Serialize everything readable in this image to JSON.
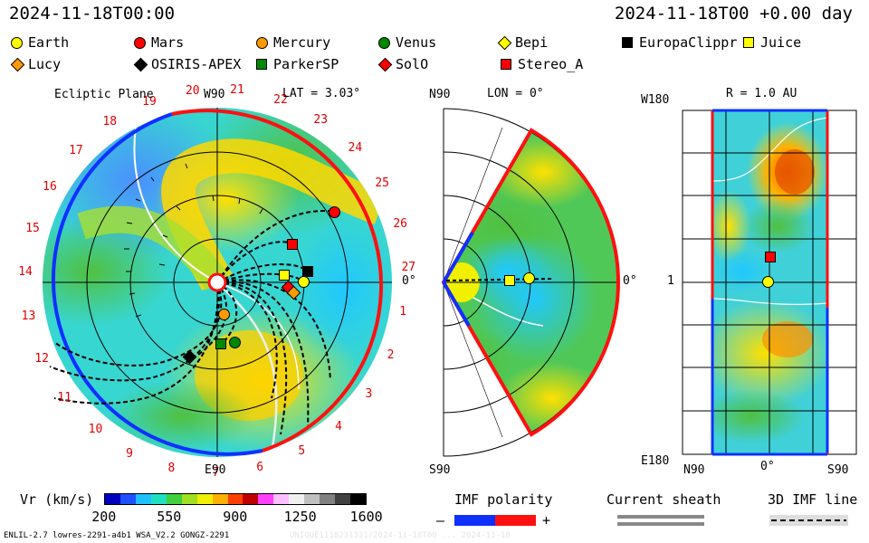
{
  "header": {
    "left_time": "2024-11-18T00:00",
    "right_time": "2024-11-18T00 +0.00 day"
  },
  "legend": {
    "items": [
      {
        "label": "Earth",
        "shape": "circle",
        "color": "#ffff00"
      },
      {
        "label": "Mars",
        "shape": "circle",
        "color": "#ff0000"
      },
      {
        "label": "Mercury",
        "shape": "circle",
        "color": "#ff9900"
      },
      {
        "label": "Venus",
        "shape": "circle",
        "color": "#008800"
      },
      {
        "label": "Bepi",
        "shape": "diamond",
        "color": "#ffff00"
      },
      {
        "label": "EuropaClippr",
        "shape": "square",
        "color": "#000000"
      },
      {
        "label": "Juice",
        "shape": "square",
        "color": "#ffff00"
      },
      {
        "label": "Lucy",
        "shape": "diamond",
        "color": "#ff9900"
      },
      {
        "label": "OSIRIS-APEX",
        "shape": "diamond",
        "color": "#000000"
      },
      {
        "label": "ParkerSP",
        "shape": "square",
        "color": "#008800"
      },
      {
        "label": "SolO",
        "shape": "diamond",
        "color": "#ff0000"
      },
      {
        "label": "Stereo_A",
        "shape": "square",
        "color": "#ff0000"
      }
    ]
  },
  "panels": {
    "ecliptic": {
      "title": "Ecliptic Plane",
      "lat": "LAT = 3.03°",
      "top_label": "W90",
      "bottom_label": "E90",
      "right_label": "0°"
    },
    "meridional": {
      "top_label": "N90",
      "lon": "LON = 0°",
      "bottom_label": "S90",
      "right_label": "0°"
    },
    "radial": {
      "title": "R = 1.0 AU",
      "top_left": "W180",
      "mid_left": "1",
      "bottom_left": "E180",
      "x_left": "N90",
      "x_mid": "0°",
      "x_right": "S90"
    }
  },
  "colorbar": {
    "label": "Vr (km/s)",
    "ticks": [
      "200",
      "550",
      "900",
      "1250",
      "1600"
    ],
    "colors": [
      "#0000c0",
      "#2050ff",
      "#20c0ff",
      "#20e0c0",
      "#40d040",
      "#a0e020",
      "#f0f000",
      "#ffb000",
      "#ff4000",
      "#c00000",
      "#ff40ff",
      "#ffc0ff",
      "#f0f0f0",
      "#c0c0c0",
      "#808080",
      "#404040",
      "#000000"
    ]
  },
  "imf": {
    "title": "IMF polarity",
    "minus": "–",
    "plus": "+"
  },
  "sheath": {
    "title": "Current sheath"
  },
  "imf3d": {
    "title": "3D IMF line"
  },
  "footer": {
    "left": "ENLIL-2.7 lowres-2291-a4b1 WSA_V2.2 GONGZ-2291",
    "right": "UNIQUE1118231331/2024-11-18T00 ... 2024-11-18"
  },
  "chart_data": {
    "type": "heatmap",
    "title": "Vr (km/s)",
    "carrington_labels": [
      "1",
      "2",
      "3",
      "4",
      "5",
      "6",
      "7",
      "8",
      "9",
      "10",
      "11",
      "12",
      "13",
      "14",
      "15",
      "16",
      "17",
      "18",
      "19",
      "20",
      "21",
      "22",
      "23",
      "24",
      "25",
      "26",
      "27"
    ],
    "value_range": [
      200,
      1600
    ],
    "bodies": [
      "Earth",
      "Mars",
      "Mercury",
      "Venus",
      "Bepi",
      "EuropaClippr",
      "Juice",
      "Lucy",
      "OSIRIS-APEX",
      "ParkerSP",
      "SolO",
      "Stereo_A"
    ]
  }
}
